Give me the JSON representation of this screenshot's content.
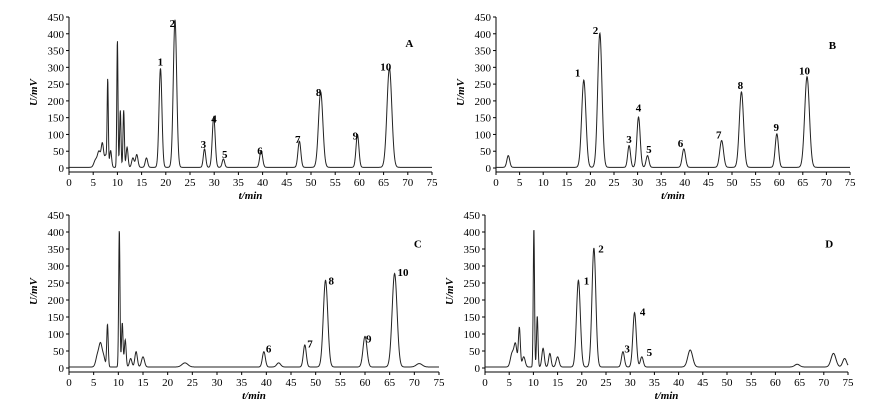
{
  "figure": {
    "x_label": "t/min",
    "y_label": "U/mV"
  },
  "chart_data": [
    {
      "type": "line",
      "panel": "A",
      "xlim": [
        0,
        75
      ],
      "ylim": [
        0,
        450
      ],
      "xticks": [
        0,
        5,
        10,
        15,
        20,
        25,
        30,
        35,
        40,
        45,
        50,
        55,
        60,
        65,
        70,
        75
      ],
      "yticks": [
        0,
        50,
        100,
        150,
        200,
        250,
        300,
        350,
        400,
        450
      ],
      "baseline": 2,
      "peaks": [
        {
          "t": 5.5,
          "h": 22,
          "w": 0.35
        },
        {
          "t": 6.2,
          "h": 45,
          "w": 0.3
        },
        {
          "t": 6.9,
          "h": 70,
          "w": 0.25
        },
        {
          "t": 7.6,
          "h": 35,
          "w": 0.25
        },
        {
          "t": 8.0,
          "h": 255,
          "w": 0.12
        },
        {
          "t": 8.6,
          "h": 50,
          "w": 0.2
        },
        {
          "t": 10.0,
          "h": 380,
          "w": 0.12
        },
        {
          "t": 10.6,
          "h": 170,
          "w": 0.14
        },
        {
          "t": 11.3,
          "h": 170,
          "w": 0.14
        },
        {
          "t": 12.0,
          "h": 60,
          "w": 0.2
        },
        {
          "t": 13.2,
          "h": 28,
          "w": 0.25
        },
        {
          "t": 14.0,
          "h": 38,
          "w": 0.25
        },
        {
          "t": 16.0,
          "h": 28,
          "w": 0.25
        },
        {
          "t": 18.9,
          "h": 295,
          "w": 0.3
        },
        {
          "t": 21.9,
          "h": 440,
          "w": 0.35
        },
        {
          "t": 28.0,
          "h": 55,
          "w": 0.25
        },
        {
          "t": 29.9,
          "h": 150,
          "w": 0.3
        },
        {
          "t": 31.9,
          "h": 25,
          "w": 0.25
        },
        {
          "t": 39.7,
          "h": 50,
          "w": 0.3
        },
        {
          "t": 47.6,
          "h": 78,
          "w": 0.3
        },
        {
          "t": 52.0,
          "h": 225,
          "w": 0.45
        },
        {
          "t": 59.6,
          "h": 98,
          "w": 0.3
        },
        {
          "t": 66.2,
          "h": 295,
          "w": 0.5
        }
      ],
      "labels": [
        {
          "text": "1",
          "t": 18.3,
          "v": 305
        },
        {
          "text": "2",
          "t": 20.8,
          "v": 420
        },
        {
          "text": "3",
          "t": 27.2,
          "v": 60
        },
        {
          "text": "4",
          "t": 29.4,
          "v": 135
        },
        {
          "text": "5",
          "t": 31.6,
          "v": 30
        },
        {
          "text": "6",
          "t": 38.9,
          "v": 40
        },
        {
          "text": "7",
          "t": 46.7,
          "v": 75
        },
        {
          "text": "8",
          "t": 51.0,
          "v": 215
        },
        {
          "text": "9",
          "t": 58.6,
          "v": 85
        },
        {
          "text": "10",
          "t": 64.3,
          "v": 290
        },
        {
          "text": "A",
          "t": 69.5,
          "v": 360
        }
      ]
    },
    {
      "type": "line",
      "panel": "B",
      "xlim": [
        0,
        75
      ],
      "ylim": [
        0,
        450
      ],
      "xticks": [
        0,
        5,
        10,
        15,
        20,
        25,
        30,
        35,
        40,
        45,
        50,
        55,
        60,
        65,
        70,
        75
      ],
      "yticks": [
        0,
        50,
        100,
        150,
        200,
        250,
        300,
        350,
        400,
        450
      ],
      "baseline": 2,
      "peaks": [
        {
          "t": 2.6,
          "h": 35,
          "w": 0.3
        },
        {
          "t": 18.6,
          "h": 260,
          "w": 0.45
        },
        {
          "t": 22.0,
          "h": 400,
          "w": 0.45
        },
        {
          "t": 28.2,
          "h": 65,
          "w": 0.3
        },
        {
          "t": 30.2,
          "h": 150,
          "w": 0.35
        },
        {
          "t": 32.1,
          "h": 35,
          "w": 0.3
        },
        {
          "t": 39.8,
          "h": 55,
          "w": 0.35
        },
        {
          "t": 47.8,
          "h": 80,
          "w": 0.4
        },
        {
          "t": 52.0,
          "h": 225,
          "w": 0.45
        },
        {
          "t": 59.5,
          "h": 100,
          "w": 0.35
        },
        {
          "t": 65.9,
          "h": 270,
          "w": 0.5
        }
      ],
      "labels": [
        {
          "text": "1",
          "t": 16.7,
          "v": 272
        },
        {
          "text": "2",
          "t": 20.5,
          "v": 400
        },
        {
          "text": "3",
          "t": 27.6,
          "v": 75
        },
        {
          "text": "4",
          "t": 29.6,
          "v": 168
        },
        {
          "text": "5",
          "t": 31.8,
          "v": 45
        },
        {
          "text": "6",
          "t": 38.5,
          "v": 62
        },
        {
          "text": "7",
          "t": 46.6,
          "v": 88
        },
        {
          "text": "8",
          "t": 51.2,
          "v": 235
        },
        {
          "text": "9",
          "t": 58.8,
          "v": 110
        },
        {
          "text": "10",
          "t": 64.2,
          "v": 278
        },
        {
          "text": "B",
          "t": 70.5,
          "v": 355
        }
      ]
    },
    {
      "type": "line",
      "panel": "C",
      "xlim": [
        0,
        75
      ],
      "ylim": [
        0,
        450
      ],
      "xticks": [
        0,
        5,
        10,
        15,
        20,
        25,
        30,
        35,
        40,
        45,
        50,
        55,
        60,
        65,
        70,
        75
      ],
      "yticks": [
        0,
        50,
        100,
        150,
        200,
        250,
        300,
        350,
        400,
        450
      ],
      "baseline": 3,
      "peaks": [
        {
          "t": 5.8,
          "h": 35,
          "w": 0.35
        },
        {
          "t": 6.4,
          "h": 60,
          "w": 0.3
        },
        {
          "t": 7.0,
          "h": 30,
          "w": 0.3
        },
        {
          "t": 7.8,
          "h": 125,
          "w": 0.15
        },
        {
          "t": 10.2,
          "h": 405,
          "w": 0.13
        },
        {
          "t": 10.8,
          "h": 130,
          "w": 0.15
        },
        {
          "t": 11.4,
          "h": 80,
          "w": 0.18
        },
        {
          "t": 12.5,
          "h": 25,
          "w": 0.25
        },
        {
          "t": 13.6,
          "h": 45,
          "w": 0.25
        },
        {
          "t": 15.0,
          "h": 30,
          "w": 0.3
        },
        {
          "t": 23.5,
          "h": 12,
          "w": 0.6
        },
        {
          "t": 39.5,
          "h": 45,
          "w": 0.3
        },
        {
          "t": 42.5,
          "h": 12,
          "w": 0.4
        },
        {
          "t": 47.8,
          "h": 65,
          "w": 0.3
        },
        {
          "t": 52.0,
          "h": 255,
          "w": 0.45
        },
        {
          "t": 60.0,
          "h": 90,
          "w": 0.4
        },
        {
          "t": 66.0,
          "h": 275,
          "w": 0.5
        },
        {
          "t": 71.0,
          "h": 10,
          "w": 0.6
        }
      ],
      "labels": [
        {
          "text": "6",
          "t": 39.9,
          "v": 45
        },
        {
          "text": "7",
          "t": 48.3,
          "v": 60
        },
        {
          "text": "8",
          "t": 52.6,
          "v": 245
        },
        {
          "text": "9",
          "t": 60.2,
          "v": 75
        },
        {
          "text": "10",
          "t": 66.6,
          "v": 270
        },
        {
          "text": "C",
          "t": 69.9,
          "v": 355
        }
      ]
    },
    {
      "type": "line",
      "panel": "D",
      "xlim": [
        0,
        75
      ],
      "ylim": [
        0,
        450
      ],
      "xticks": [
        0,
        5,
        10,
        15,
        20,
        25,
        30,
        35,
        40,
        45,
        50,
        55,
        60,
        65,
        70,
        75
      ],
      "yticks": [
        0,
        50,
        100,
        150,
        200,
        250,
        300,
        350,
        400,
        450
      ],
      "baseline": 3,
      "peaks": [
        {
          "t": 5.6,
          "h": 40,
          "w": 0.35
        },
        {
          "t": 6.3,
          "h": 65,
          "w": 0.3
        },
        {
          "t": 7.1,
          "h": 115,
          "w": 0.2
        },
        {
          "t": 8.0,
          "h": 30,
          "w": 0.3
        },
        {
          "t": 10.1,
          "h": 410,
          "w": 0.13
        },
        {
          "t": 10.8,
          "h": 150,
          "w": 0.15
        },
        {
          "t": 12.0,
          "h": 55,
          "w": 0.25
        },
        {
          "t": 13.4,
          "h": 40,
          "w": 0.25
        },
        {
          "t": 15.0,
          "h": 30,
          "w": 0.3
        },
        {
          "t": 19.3,
          "h": 255,
          "w": 0.4
        },
        {
          "t": 22.5,
          "h": 350,
          "w": 0.4
        },
        {
          "t": 28.5,
          "h": 45,
          "w": 0.3
        },
        {
          "t": 30.9,
          "h": 160,
          "w": 0.35
        },
        {
          "t": 32.4,
          "h": 30,
          "w": 0.3
        },
        {
          "t": 42.4,
          "h": 50,
          "w": 0.5
        },
        {
          "t": 64.5,
          "h": 8,
          "w": 0.5
        },
        {
          "t": 72.0,
          "h": 40,
          "w": 0.5
        },
        {
          "t": 74.3,
          "h": 25,
          "w": 0.4
        }
      ],
      "labels": [
        {
          "text": "1",
          "t": 20.4,
          "v": 245
        },
        {
          "text": "2",
          "t": 23.4,
          "v": 340
        },
        {
          "text": "3",
          "t": 28.8,
          "v": 45
        },
        {
          "text": "4",
          "t": 32.0,
          "v": 155
        },
        {
          "text": "5",
          "t": 33.4,
          "v": 35
        },
        {
          "text": "D",
          "t": 70.3,
          "v": 355
        }
      ]
    }
  ]
}
